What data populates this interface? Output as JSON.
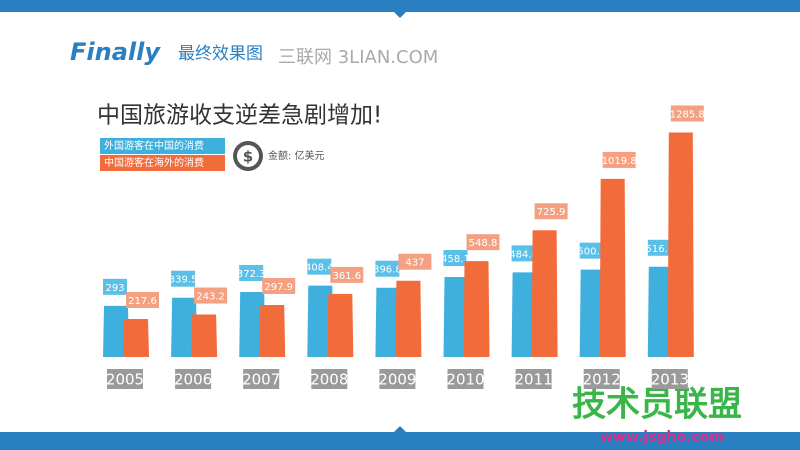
{
  "header": {
    "brand": "Finally",
    "subtitle": "最终效果图",
    "watermark": "三联网 3LIAN.COM"
  },
  "footer": {
    "watermark": "技术员联盟",
    "url": "www.jsgho.com"
  },
  "chart_data": {
    "type": "bar",
    "title": "中国旅游收支逆差急剧增加!",
    "unit_label": "金额: 亿美元",
    "currency_icon": "$",
    "categories": [
      "2005",
      "2006",
      "2007",
      "2008",
      "2009",
      "2010",
      "2011",
      "2012",
      "2013"
    ],
    "series": [
      {
        "name": "外国游客在中国的消费",
        "color": "#3fb0de",
        "values": [
          293,
          339.5,
          372.3,
          408.4,
          396.8,
          458.1,
          484.6,
          500.3,
          516.6
        ]
      },
      {
        "name": "中国游客在海外的消费",
        "color": "#f26b3a",
        "values": [
          217.6,
          243.2,
          297.9,
          361.6,
          437,
          548.8,
          725.9,
          1019.8,
          1285.8
        ]
      }
    ],
    "ylim": [
      0,
      1300
    ]
  }
}
